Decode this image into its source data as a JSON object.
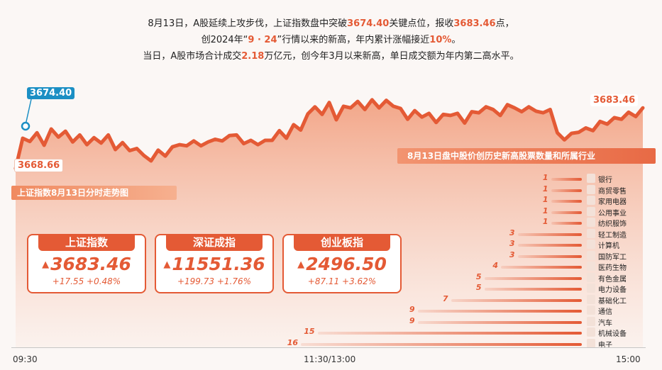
{
  "headline": {
    "line1": {
      "a": "8月13日，A股延续上攻步伐，上证指数盘中突破",
      "b": "3674.40",
      "c": "关键点位，报收",
      "d": "3683.46",
      "e": "点，"
    },
    "line2": {
      "a": "创2024年“",
      "b": "9 · 24",
      "c": "”行情以来的新高，年内累计涨幅接近",
      "d": "10%",
      "e": "。"
    },
    "line3": {
      "a": "当日，A股市场合计成交",
      "b": "2.18",
      "c": "万亿元，创今年3月以来新高，单日成交额为年内第二高水平。"
    }
  },
  "colors": {
    "accent": "#e45a35",
    "area_top": "#f2a283",
    "area_bottom": "#fbeee8",
    "callout_blue": "#1b8fc4"
  },
  "chart_data": [
    {
      "type": "area",
      "title": "上证指数8月13日分时走势图",
      "x_ticks": [
        "09:30",
        "11:30/13:00",
        "15:00"
      ],
      "annotations": {
        "open": "3668.66",
        "intraday_high": "3674.40",
        "close": "3683.46"
      },
      "ylim": [
        3666.5,
        3685.5
      ],
      "series": [
        {
          "values": [
            3666.8,
            3672.4,
            3671.8,
            3673.4,
            3671.1,
            3674.1,
            3672.6,
            3673.7,
            3671.7,
            3673.0,
            3671.2,
            3672.5,
            3671.5,
            3673.0,
            3670.3,
            3671.6,
            3670.1,
            3670.5,
            3669.2,
            3668.2,
            3670.2,
            3669.1,
            3670.8,
            3671.2,
            3671.0,
            3671.9,
            3671.0,
            3671.7,
            3672.2,
            3671.9,
            3672.9,
            3673.0,
            3671.4,
            3672.0,
            3671.2,
            3672.0,
            3672.0,
            3673.8,
            3672.4,
            3674.9,
            3673.9,
            3676.9,
            3678.2,
            3676.8,
            3679.0,
            3675.8,
            3678.3,
            3678.0,
            3679.2,
            3677.7,
            3679.5,
            3678.0,
            3679.4,
            3678.3,
            3677.9,
            3675.9,
            3677.5,
            3676.3,
            3677.0,
            3675.3,
            3676.8,
            3676.6,
            3677.0,
            3675.2,
            3677.3,
            3677.1,
            3678.2,
            3677.7,
            3676.6,
            3678.6,
            3678.0,
            3677.3,
            3678.2,
            3677.4,
            3677.1,
            3677.7,
            3673.4,
            3672.1,
            3673.3,
            3673.5,
            3674.3,
            3673.8,
            3675.5,
            3675.0,
            3676.2,
            3675.9,
            3677.2,
            3676.4,
            3678.0
          ],
          "color": "#e45a35"
        }
      ]
    },
    {
      "type": "bar",
      "title": "8月13日盘中股价创历史新高股票数量和所属行业",
      "categories": [
        "银行",
        "商贸零售",
        "家用电器",
        "公用事业",
        "纺织服饰",
        "轻工制造",
        "计算机",
        "国防军工",
        "医药生物",
        "有色金属",
        "电力设备",
        "基础化工",
        "通信",
        "汽车",
        "机械设备",
        "电子"
      ],
      "values": [
        1,
        1,
        1,
        1,
        1,
        3,
        3,
        3,
        4,
        5,
        5,
        7,
        9,
        9,
        15,
        16
      ]
    }
  ],
  "cards": [
    {
      "title": "上证指数",
      "value": "3683.46",
      "change": "+17.55 +0.48%"
    },
    {
      "title": "深证成指",
      "value": "11551.36",
      "change": "+199.73 +1.76%"
    },
    {
      "title": "创业板指",
      "value": "2496.50",
      "change": "+87.11 +3.62%"
    }
  ]
}
